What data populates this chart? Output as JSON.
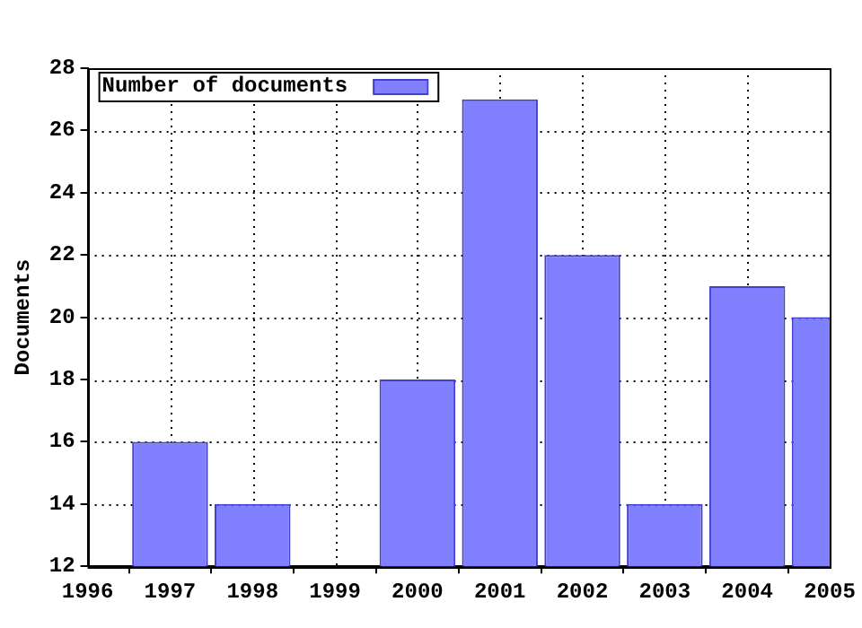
{
  "chart_data": {
    "type": "bar",
    "ylabel": "Documents",
    "x": [
      1997,
      1998,
      1999,
      2000,
      2001,
      2002,
      2003,
      2004,
      2005
    ],
    "series": [
      {
        "name": "Number of documents",
        "color": "#8080ff",
        "values": [
          16,
          14,
          null,
          18,
          27,
          22,
          14,
          21,
          20
        ]
      }
    ],
    "xlim": [
      1996,
      2005
    ],
    "xticks": [
      1996,
      1997,
      1998,
      1999,
      2000,
      2001,
      2002,
      2003,
      2004,
      2005
    ],
    "ylim": [
      12,
      28
    ],
    "yticks": [
      12,
      14,
      16,
      18,
      20,
      22,
      24,
      26,
      28
    ],
    "grid": true,
    "legend": "top left"
  }
}
